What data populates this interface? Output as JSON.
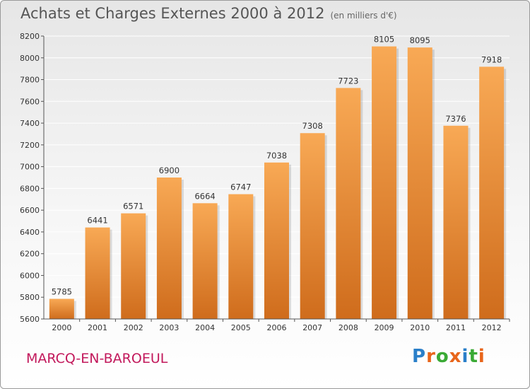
{
  "header": {
    "title": "Achats et Charges Externes 2000 à 2012",
    "unit": "(en milliers d'€)"
  },
  "footer": {
    "commune": "MARCQ-EN-BAROEUL",
    "brand": "Proxiti"
  },
  "brand_letters": [
    {
      "ch": "P",
      "color": "#2a7fc9"
    },
    {
      "ch": "r",
      "color": "#e8651b"
    },
    {
      "ch": "o",
      "color": "#3aaa35"
    },
    {
      "ch": "x",
      "color": "#e8651b"
    },
    {
      "ch": "i",
      "color": "#2a7fc9"
    },
    {
      "ch": "t",
      "color": "#3aaa35"
    },
    {
      "ch": "i",
      "color": "#e8651b"
    }
  ],
  "chart_data": {
    "type": "bar",
    "title": "Achats et Charges Externes 2000 à 2012",
    "subtitle": "(en milliers d'€)",
    "categories": [
      "2000",
      "2001",
      "2002",
      "2003",
      "2004",
      "2005",
      "2006",
      "2007",
      "2008",
      "2009",
      "2010",
      "2011",
      "2012"
    ],
    "values": [
      5785,
      6441,
      6571,
      6900,
      6664,
      6747,
      7038,
      7308,
      7723,
      8105,
      8095,
      7376,
      7918
    ],
    "xlabel": "",
    "ylabel": "",
    "ylim": [
      5600,
      8200
    ],
    "yticks": [
      5600,
      5800,
      6000,
      6200,
      6400,
      6600,
      6800,
      7000,
      7200,
      7400,
      7600,
      7800,
      8000,
      8200
    ],
    "grid": true,
    "colors": {
      "bar_top": "#f8a955",
      "bar_bottom": "#cf6c1c",
      "grid": "#ffffff"
    }
  }
}
